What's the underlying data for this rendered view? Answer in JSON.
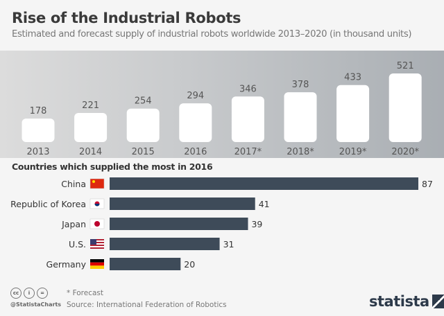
{
  "title": "Rise of the Industrial Robots",
  "subtitle": "Estimated and forecast supply of industrial robots worldwide 2013–2020 (in thousand units)",
  "chart_data": [
    {
      "type": "bar",
      "title": "Rise of the Industrial Robots",
      "categories": [
        "2013",
        "2014",
        "2015",
        "2016",
        "2017*",
        "2018*",
        "2019*",
        "2020*"
      ],
      "values": [
        178,
        221,
        254,
        294,
        346,
        378,
        433,
        521
      ],
      "ylim": [
        0,
        521
      ],
      "grid": false,
      "bar_color": "#ffffff"
    },
    {
      "type": "bar",
      "orientation": "horizontal",
      "title": "Countries which supplied the most in 2016",
      "categories": [
        "China",
        "Republic of Korea",
        "Japan",
        "U.S.",
        "Germany"
      ],
      "values": [
        87,
        41,
        39,
        31,
        20
      ],
      "xlim": [
        0,
        87
      ],
      "grid": false,
      "bar_color": "#3e4b59"
    }
  ],
  "footer": {
    "forecast_note": "* Forecast",
    "source": "Source: International Federation of Robotics",
    "handle": "@StatistaCharts",
    "brand": "statista",
    "cc_icons": [
      "cc",
      "by",
      "nd"
    ]
  }
}
